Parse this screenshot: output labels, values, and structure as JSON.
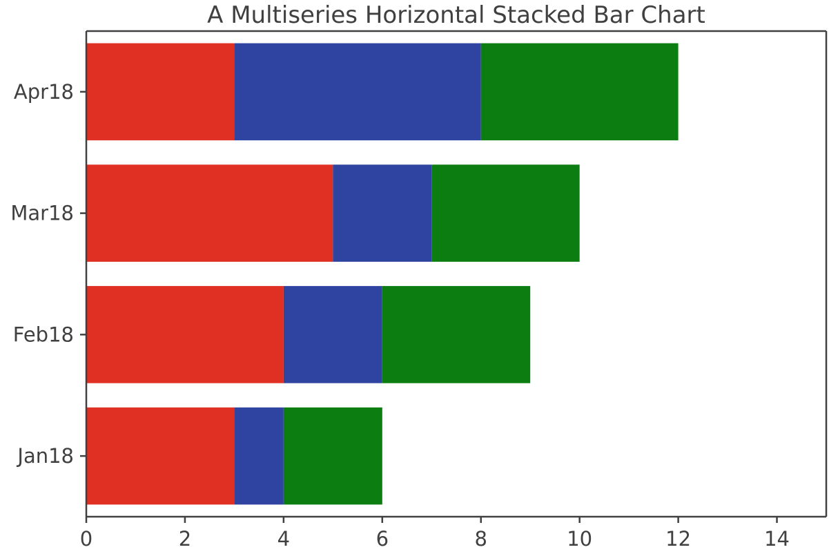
{
  "chart_data": {
    "type": "bar",
    "orientation": "horizontal",
    "stacked": true,
    "title": "A Multiseries Horizontal Stacked Bar Chart",
    "xlabel": "",
    "ylabel": "",
    "categories": [
      "Jan18",
      "Feb18",
      "Mar18",
      "Apr18"
    ],
    "series": [
      {
        "values": [
          3,
          4,
          5,
          3
        ],
        "color": "#e03024"
      },
      {
        "values": [
          1,
          2,
          2,
          5
        ],
        "color": "#2e44a0"
      },
      {
        "values": [
          2,
          3,
          3,
          4
        ],
        "color": "#0c7d10"
      }
    ],
    "xlim": [
      0,
      15
    ],
    "xticks": [
      0,
      2,
      4,
      6,
      8,
      10,
      12,
      14
    ],
    "grid": false,
    "legend": "none"
  }
}
